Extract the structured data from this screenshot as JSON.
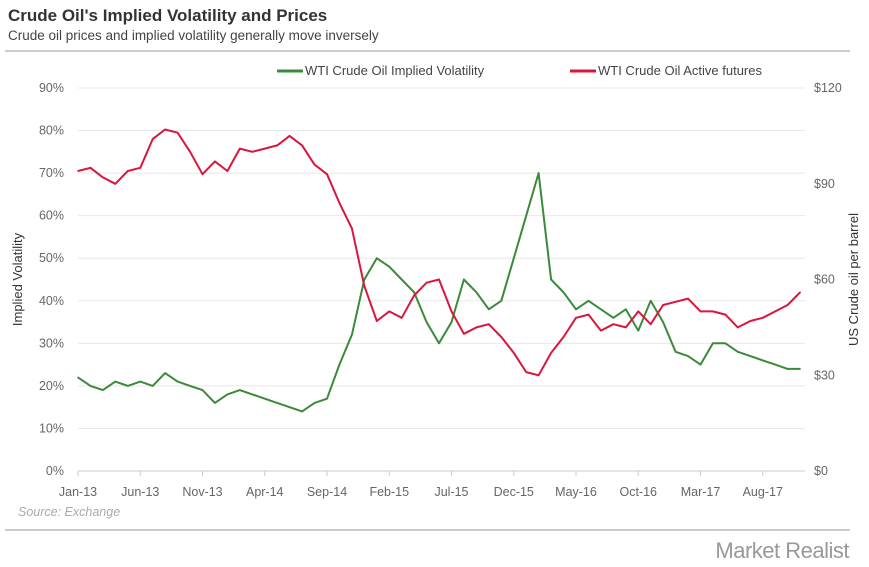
{
  "title": "Crude Oil's Implied Volatility and Prices",
  "subtitle": "Crude oil prices and implied volatility generally move inversely",
  "source": "Source: Exchange",
  "logo": "Market Realist",
  "colors": {
    "volatility": "#3b8a3a",
    "price": "#d9163d",
    "grid": "#e8e8e8",
    "text": "#666"
  },
  "chart_data": {
    "type": "line",
    "title": "",
    "xlabel": "",
    "ylabel": "Implied Volatility",
    "y2label": "US Crude oil per barrel",
    "legend_position": "top",
    "grid": true,
    "x_ticks": [
      "Jan-13",
      "Jun-13",
      "Nov-13",
      "Apr-14",
      "Sep-14",
      "Feb-15",
      "Jul-15",
      "Dec-15",
      "May-16",
      "Oct-16",
      "Mar-17",
      "Aug-17"
    ],
    "y_ticks": [
      "0%",
      "10%",
      "20%",
      "30%",
      "40%",
      "50%",
      "60%",
      "70%",
      "80%",
      "90%"
    ],
    "y2_ticks": [
      "$0",
      "$30",
      "$60",
      "$90",
      "$120"
    ],
    "ylim": [
      0,
      90
    ],
    "y2lim": [
      0,
      120
    ],
    "x": [
      "2013-01",
      "2013-02",
      "2013-03",
      "2013-04",
      "2013-05",
      "2013-06",
      "2013-07",
      "2013-08",
      "2013-09",
      "2013-10",
      "2013-11",
      "2013-12",
      "2014-01",
      "2014-02",
      "2014-03",
      "2014-04",
      "2014-05",
      "2014-06",
      "2014-07",
      "2014-08",
      "2014-09",
      "2014-10",
      "2014-11",
      "2014-12",
      "2015-01",
      "2015-02",
      "2015-03",
      "2015-04",
      "2015-05",
      "2015-06",
      "2015-07",
      "2015-08",
      "2015-09",
      "2015-10",
      "2015-11",
      "2015-12",
      "2016-01",
      "2016-02",
      "2016-03",
      "2016-04",
      "2016-05",
      "2016-06",
      "2016-07",
      "2016-08",
      "2016-09",
      "2016-10",
      "2016-11",
      "2016-12",
      "2017-01",
      "2017-02",
      "2017-03",
      "2017-04",
      "2017-05",
      "2017-06",
      "2017-07",
      "2017-08",
      "2017-09",
      "2017-10",
      "2017-11"
    ],
    "series": [
      {
        "name": "WTI Crude Oil Implied Volatility",
        "axis": "left",
        "unit": "%",
        "values": [
          22,
          20,
          19,
          21,
          20,
          21,
          20,
          23,
          21,
          20,
          19,
          16,
          18,
          19,
          18,
          17,
          16,
          15,
          14,
          16,
          17,
          25,
          32,
          45,
          50,
          48,
          45,
          42,
          35,
          30,
          35,
          45,
          42,
          38,
          40,
          50,
          60,
          70,
          45,
          42,
          38,
          40,
          38,
          36,
          38,
          33,
          40,
          35,
          28,
          27,
          25,
          30,
          30,
          28,
          27,
          26,
          25,
          24,
          24
        ]
      },
      {
        "name": "WTI Crude Oil Active futures",
        "axis": "right",
        "unit": "$",
        "values": [
          94,
          95,
          92,
          90,
          94,
          95,
          104,
          107,
          106,
          100,
          93,
          97,
          94,
          101,
          100,
          101,
          102,
          105,
          102,
          96,
          93,
          84,
          76,
          58,
          47,
          50,
          48,
          55,
          59,
          60,
          50,
          43,
          45,
          46,
          42,
          37,
          31,
          30,
          37,
          42,
          48,
          49,
          44,
          46,
          45,
          50,
          46,
          52,
          53,
          54,
          50,
          50,
          49,
          45,
          47,
          48,
          50,
          52,
          56
        ]
      }
    ]
  }
}
